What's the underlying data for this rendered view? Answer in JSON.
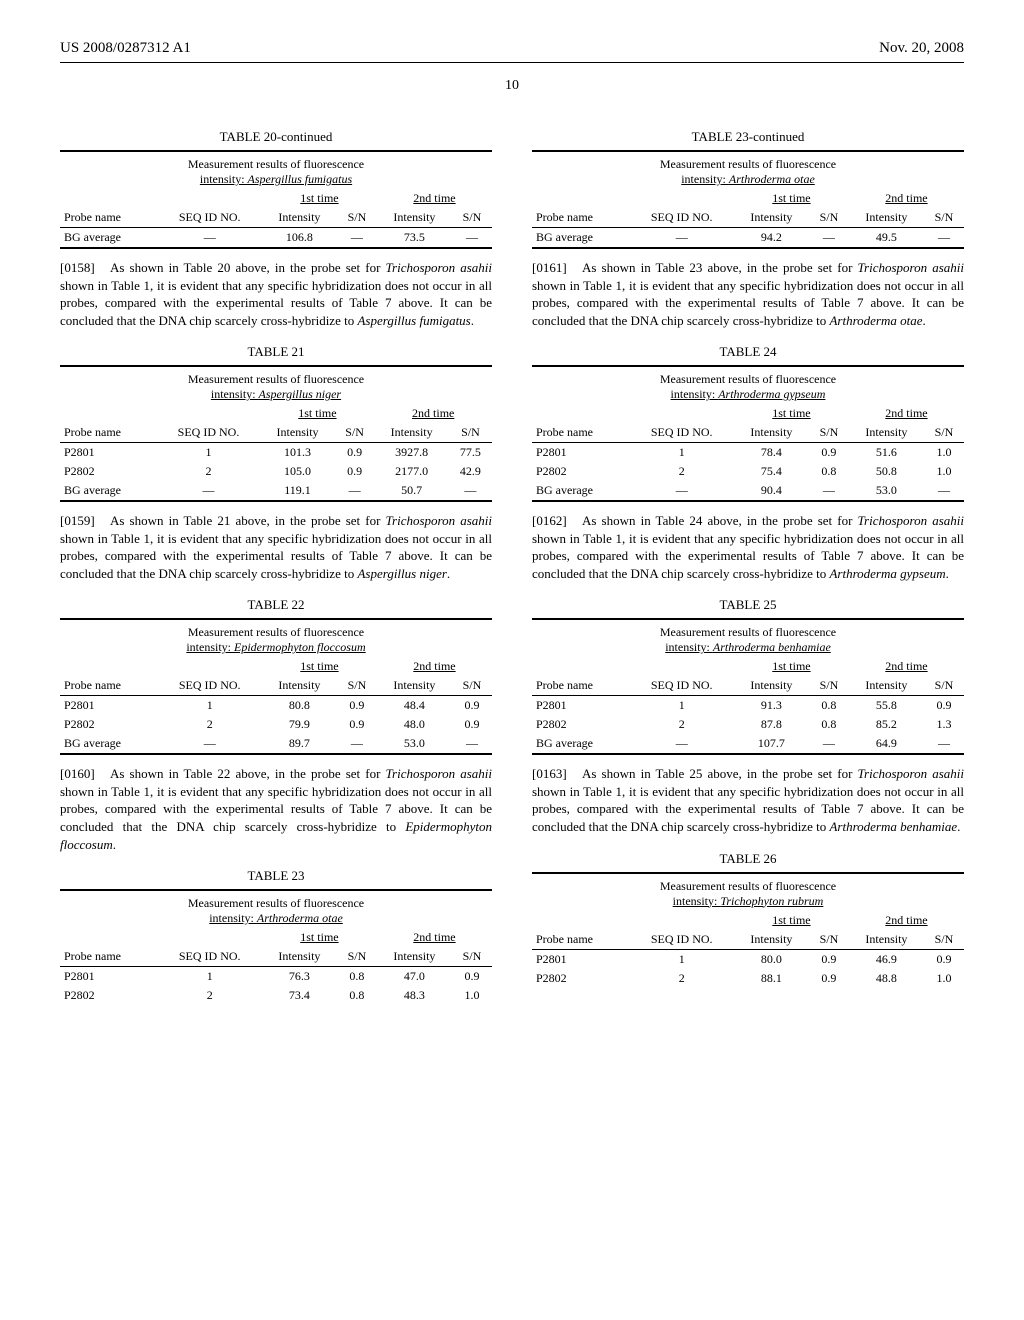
{
  "header": {
    "left": "US 2008/0287312 A1",
    "right": "Nov. 20, 2008"
  },
  "pageNumber": "10",
  "leftCol": {
    "table20cont": {
      "label": "TABLE 20-continued",
      "title1": "Measurement results of fluorescence",
      "title2": "intensity: Aspergillus fumigatus",
      "time1": "1st time",
      "time2": "2nd time",
      "headers": [
        "Probe name",
        "SEQ ID NO.",
        "Intensity",
        "S/N",
        "Intensity",
        "S/N"
      ],
      "rows": [
        [
          "BG average",
          "—",
          "106.8",
          "—",
          "73.5",
          "—"
        ]
      ]
    },
    "para158": {
      "num": "[0158]",
      "text": "As shown in Table 20 above, in the probe set for ",
      "italic1": "Trichosporon asahii",
      "text2": " shown in Table 1, it is evident that any specific hybridization does not occur in all probes, compared with the experimental results of Table 7 above. It can be concluded that the DNA chip scarcely cross-hybridize to ",
      "italic2": "Aspergillus fumigatus",
      "text3": "."
    },
    "table21": {
      "label": "TABLE 21",
      "title1": "Measurement results of fluorescence",
      "title2": "intensity: Aspergillus niger",
      "time1": "1st time",
      "time2": "2nd time",
      "headers": [
        "Probe name",
        "SEQ ID NO.",
        "Intensity",
        "S/N",
        "Intensity",
        "S/N"
      ],
      "rows": [
        [
          "P2801",
          "1",
          "101.3",
          "0.9",
          "3927.8",
          "77.5"
        ],
        [
          "P2802",
          "2",
          "105.0",
          "0.9",
          "2177.0",
          "42.9"
        ],
        [
          "BG average",
          "—",
          "119.1",
          "—",
          "50.7",
          "—"
        ]
      ]
    },
    "para159": {
      "num": "[0159]",
      "text": "As shown in Table 21 above, in the probe set for ",
      "italic1": "Trichosporon asahii",
      "text2": " shown in Table 1, it is evident that any specific hybridization does not occur in all probes, compared with the experimental results of Table 7 above. It can be concluded that the DNA chip scarcely cross-hybridize to ",
      "italic2": "Aspergillus niger",
      "text3": "."
    },
    "table22": {
      "label": "TABLE 22",
      "title1": "Measurement results of fluorescence",
      "title2": "intensity: Epidermophyton floccosum",
      "time1": "1st time",
      "time2": "2nd time",
      "headers": [
        "Probe name",
        "SEQ ID NO.",
        "Intensity",
        "S/N",
        "Intensity",
        "S/N"
      ],
      "rows": [
        [
          "P2801",
          "1",
          "80.8",
          "0.9",
          "48.4",
          "0.9"
        ],
        [
          "P2802",
          "2",
          "79.9",
          "0.9",
          "48.0",
          "0.9"
        ],
        [
          "BG average",
          "—",
          "89.7",
          "—",
          "53.0",
          "—"
        ]
      ]
    },
    "para160": {
      "num": "[0160]",
      "text": "As shown in Table 22 above, in the probe set for ",
      "italic1": "Trichosporon asahii",
      "text2": " shown in Table 1, it is evident that any specific hybridization does not occur in all probes, compared with the experimental results of Table 7 above. It can be concluded that the DNA chip scarcely cross-hybridize to ",
      "italic2": "Epidermophyton floccosum",
      "text3": "."
    },
    "table23": {
      "label": "TABLE 23",
      "title1": "Measurement results of fluorescence",
      "title2": "intensity: Arthroderma otae",
      "time1": "1st time",
      "time2": "2nd time",
      "headers": [
        "Probe name",
        "SEQ ID NO.",
        "Intensity",
        "S/N",
        "Intensity",
        "S/N"
      ],
      "rows": [
        [
          "P2801",
          "1",
          "76.3",
          "0.8",
          "47.0",
          "0.9"
        ],
        [
          "P2802",
          "2",
          "73.4",
          "0.8",
          "48.3",
          "1.0"
        ]
      ]
    }
  },
  "rightCol": {
    "table23cont": {
      "label": "TABLE 23-continued",
      "title1": "Measurement results of fluorescence",
      "title2": "intensity: Arthroderma otae",
      "time1": "1st time",
      "time2": "2nd time",
      "headers": [
        "Probe name",
        "SEQ ID NO.",
        "Intensity",
        "S/N",
        "Intensity",
        "S/N"
      ],
      "rows": [
        [
          "BG average",
          "—",
          "94.2",
          "—",
          "49.5",
          "—"
        ]
      ]
    },
    "para161": {
      "num": "[0161]",
      "text": "As shown in Table 23 above, in the probe set for ",
      "italic1": "Trichosporon asahii",
      "text2": " shown in Table 1, it is evident that any specific hybridization does not occur in all probes, compared with the experimental results of Table 7 above. It can be concluded that the DNA chip scarcely cross-hybridize to ",
      "italic2": "Arthroderma otae",
      "text3": "."
    },
    "table24": {
      "label": "TABLE 24",
      "title1": "Measurement results of fluorescence",
      "title2": "intensity: Arthroderma gypseum",
      "time1": "1st time",
      "time2": "2nd time",
      "headers": [
        "Probe name",
        "SEQ ID NO.",
        "Intensity",
        "S/N",
        "Intensity",
        "S/N"
      ],
      "rows": [
        [
          "P2801",
          "1",
          "78.4",
          "0.9",
          "51.6",
          "1.0"
        ],
        [
          "P2802",
          "2",
          "75.4",
          "0.8",
          "50.8",
          "1.0"
        ],
        [
          "BG average",
          "—",
          "90.4",
          "—",
          "53.0",
          "—"
        ]
      ]
    },
    "para162": {
      "num": "[0162]",
      "text": "As shown in Table 24 above, in the probe set for ",
      "italic1": "Trichosporon asahii",
      "text2": " shown in Table 1, it is evident that any specific hybridization does not occur in all probes, compared with the experimental results of Table 7 above. It can be concluded that the DNA chip scarcely cross-hybridize to ",
      "italic2": "Arthroderma gypseum",
      "text3": "."
    },
    "table25": {
      "label": "TABLE 25",
      "title1": "Measurement results of fluorescence",
      "title2": "intensity: Arthroderma benhamiae",
      "time1": "1st time",
      "time2": "2nd time",
      "headers": [
        "Probe name",
        "SEQ ID NO.",
        "Intensity",
        "S/N",
        "Intensity",
        "S/N"
      ],
      "rows": [
        [
          "P2801",
          "1",
          "91.3",
          "0.8",
          "55.8",
          "0.9"
        ],
        [
          "P2802",
          "2",
          "87.8",
          "0.8",
          "85.2",
          "1.3"
        ],
        [
          "BG average",
          "—",
          "107.7",
          "—",
          "64.9",
          "—"
        ]
      ]
    },
    "para163": {
      "num": "[0163]",
      "text": "As shown in Table 25 above, in the probe set for ",
      "italic1": "Trichosporon asahii",
      "text2": " shown in Table 1, it is evident that any specific hybridization does not occur in all probes, compared with the experimental results of Table 7 above. It can be concluded that the DNA chip scarcely cross-hybridize to ",
      "italic2": "Arthroderma benhamiae",
      "text3": "."
    },
    "table26": {
      "label": "TABLE 26",
      "title1": "Measurement results of fluorescence",
      "title2": "intensity: Trichophyton rubrum",
      "time1": "1st time",
      "time2": "2nd time",
      "headers": [
        "Probe name",
        "SEQ ID NO.",
        "Intensity",
        "S/N",
        "Intensity",
        "S/N"
      ],
      "rows": [
        [
          "P2801",
          "1",
          "80.0",
          "0.9",
          "46.9",
          "0.9"
        ],
        [
          "P2802",
          "2",
          "88.1",
          "0.9",
          "48.8",
          "1.0"
        ]
      ]
    }
  }
}
